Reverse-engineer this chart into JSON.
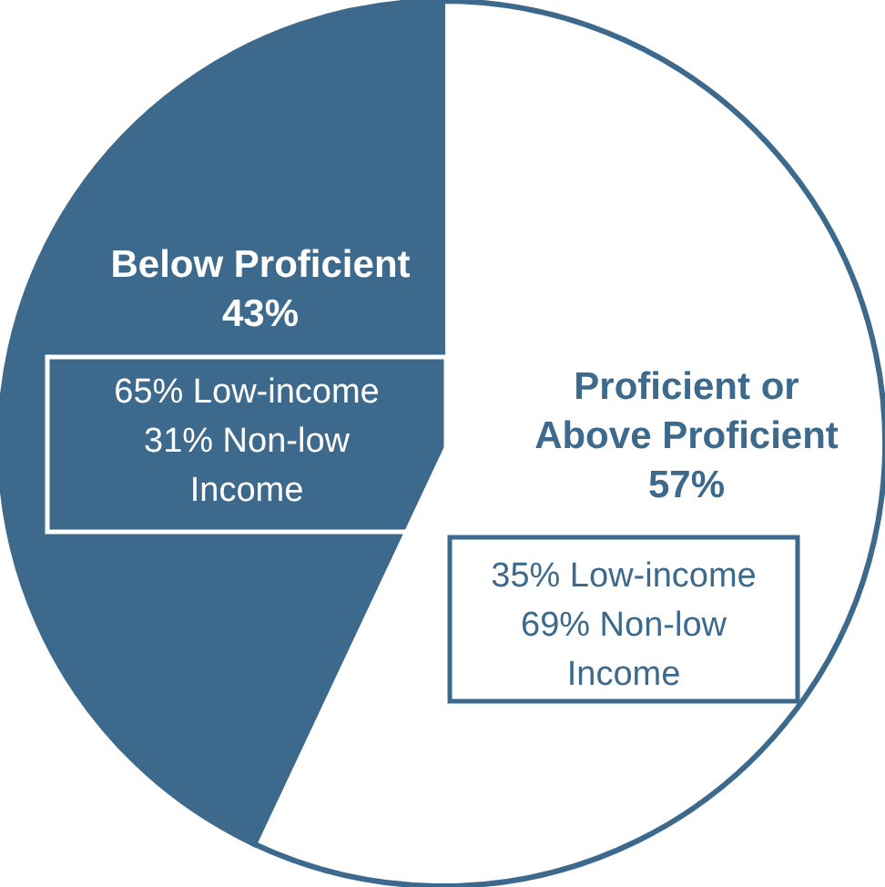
{
  "chart_data": {
    "type": "pie",
    "categories": [
      "Proficient or Above Proficient",
      "Below Proficient"
    ],
    "values": [
      57,
      43
    ],
    "value_labels": [
      "57%",
      "43%"
    ],
    "colors": [
      "#ffffff",
      "#3d6a8c"
    ],
    "annotations": [
      "65% Low-income 31% Non-low Income",
      "35% Low-income 69% Non-low Income"
    ]
  }
}
